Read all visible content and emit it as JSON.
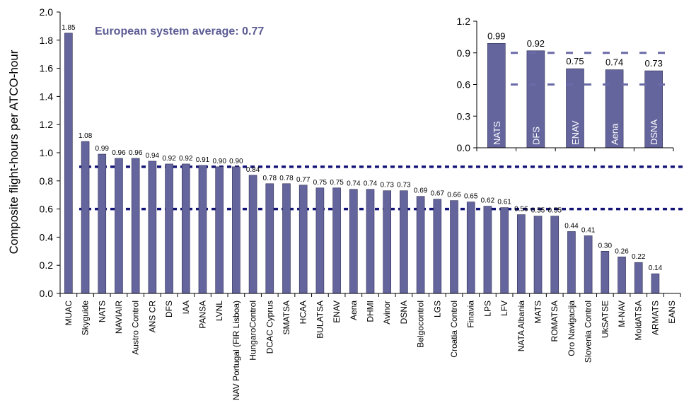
{
  "colors": {
    "bar_fill": "#65659e",
    "bar_stroke": "#2e2e55",
    "axis": "#000000",
    "ref_line_main": "#141478",
    "ref_line_inset": "#6a6aa8",
    "annotation": "#5c5c95",
    "inset_label": "#ffffff"
  },
  "chart_data": [
    {
      "id": "main",
      "type": "bar",
      "title": "",
      "xlabel": "",
      "ylabel": "Composite flight-hours per ATCO-hour",
      "ylim": [
        0,
        2.0
      ],
      "yticks": [
        "0.0",
        "0.2",
        "0.4",
        "0.6",
        "0.8",
        "1.0",
        "1.2",
        "1.4",
        "1.6",
        "1.8",
        "2.0"
      ],
      "grid": false,
      "annotation": "European system average: 0.77",
      "reference_lines": [
        0.9,
        0.6
      ],
      "categories": [
        "MUAC",
        "Skyguide",
        "NATS",
        "NAVIAIR",
        "Austro Control",
        "ANS CR",
        "DFS",
        "IAA",
        "PANSA",
        "LVNL",
        "NAV Portugal (FIR Lisboa)",
        "HungaroControl",
        "DCAC Cyprus",
        "SMATSA",
        "HCAA",
        "BULATSA",
        "ENAV",
        "Aena",
        "DHMI",
        "Avinor",
        "DSNA",
        "Belgocontrol",
        "LGS",
        "Croatia Control",
        "Finavia",
        "LPS",
        "LFV",
        "NATA Albania",
        "MATS",
        "ROMATSA",
        "Oro Navigacija",
        "Slovenia Control",
        "UkSATSE",
        "M-NAV",
        "MoldATSA",
        "ARMATS",
        "EANS"
      ],
      "values": [
        1.85,
        1.08,
        0.99,
        0.96,
        0.96,
        0.94,
        0.92,
        0.92,
        0.91,
        0.9,
        0.9,
        0.84,
        0.78,
        0.78,
        0.77,
        0.75,
        0.75,
        0.74,
        0.74,
        0.73,
        0.73,
        0.69,
        0.67,
        0.66,
        0.65,
        0.62,
        0.61,
        0.56,
        0.55,
        0.55,
        0.44,
        0.41,
        0.3,
        0.26,
        0.22,
        0.14,
        null
      ],
      "value_labels": [
        "1.85",
        "1.08",
        "0.99",
        "0.96",
        "0.96",
        "0.94",
        "0.92",
        "0.92",
        "0.91",
        "0.90",
        "0.90",
        "0.84",
        "0.78",
        "0.78",
        "0.77",
        "0.75",
        "0.75",
        "0.74",
        "0.74",
        "0.73",
        "0.73",
        "0.69",
        "0.67",
        "0.66",
        "0.65",
        "0.62",
        "0.61",
        "0.56",
        "0.55",
        "0.55",
        "0.44",
        "0.41",
        "0.30",
        "0.26",
        "0.22",
        "0.14",
        ""
      ]
    },
    {
      "id": "inset",
      "type": "bar",
      "title": "",
      "ylim": [
        0,
        1.2
      ],
      "yticks": [
        "0.0",
        "0.3",
        "0.6",
        "0.9",
        "1.2"
      ],
      "grid": false,
      "legend": "none",
      "placement": "top-right",
      "reference_lines": [
        0.9,
        0.6
      ],
      "categories": [
        "NATS",
        "DFS",
        "ENAV",
        "Aena",
        "DSNA"
      ],
      "values": [
        0.99,
        0.92,
        0.75,
        0.74,
        0.73
      ],
      "value_labels": [
        "0.99",
        "0.92",
        "0.75",
        "0.74",
        "0.73"
      ]
    }
  ]
}
